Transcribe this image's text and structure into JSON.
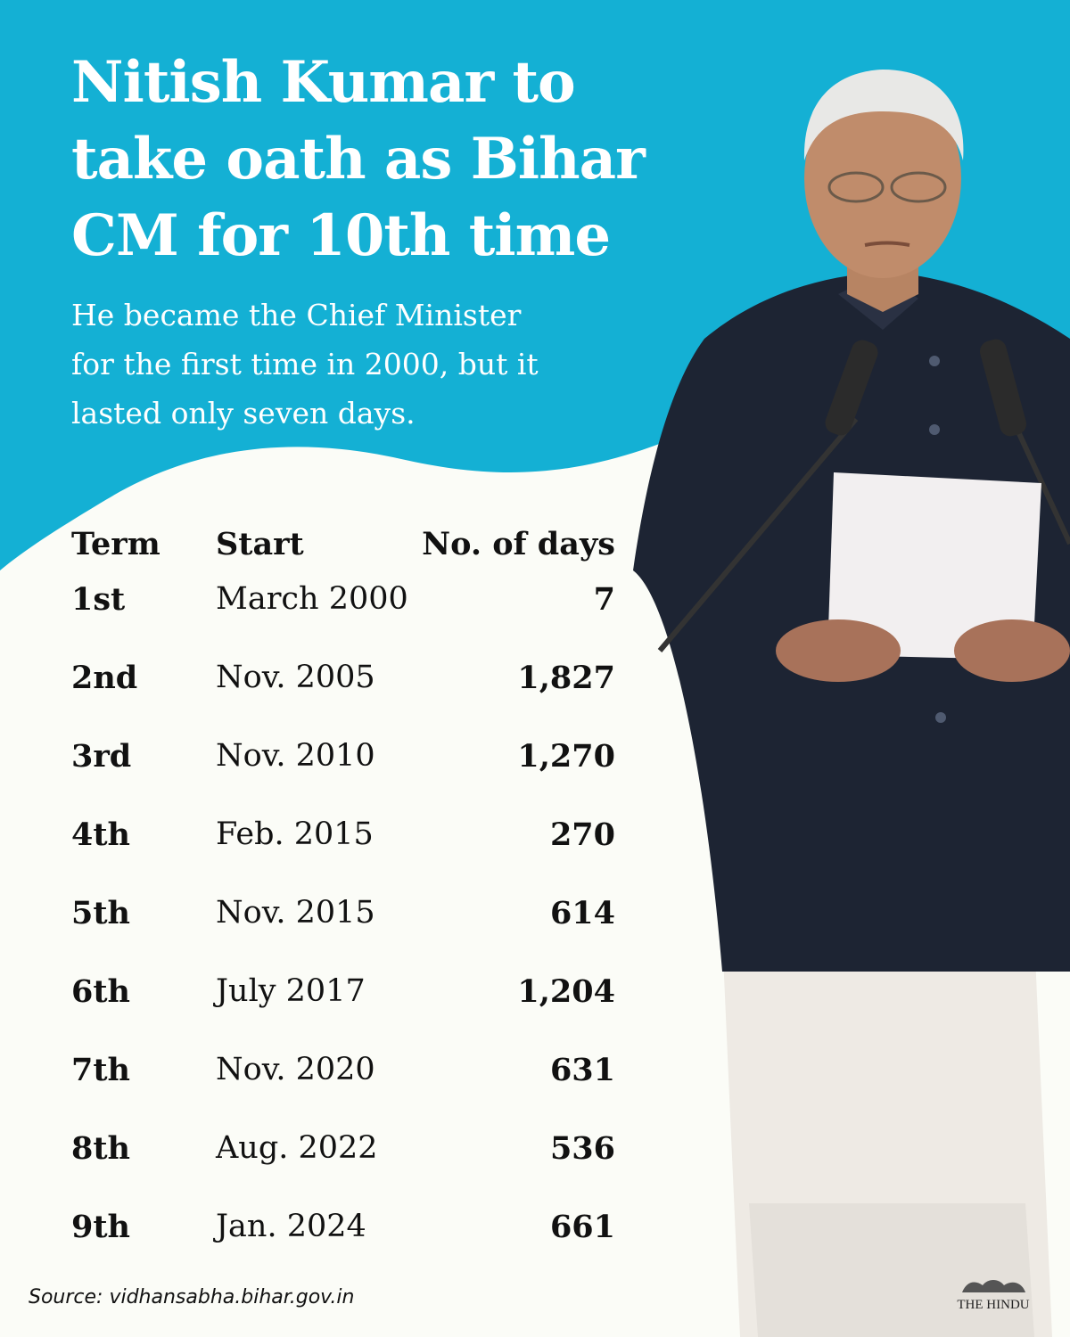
{
  "colors": {
    "accent": "#14b0d4",
    "background": "#fbfcf7",
    "text": "#111111"
  },
  "title_lines": [
    "Nitish Kumar to",
    "take oath as Bihar",
    "CM for 10th time"
  ],
  "subtitle_lines": [
    "He became the Chief Minister",
    "for the first time in 2000, but it",
    "lasted only seven days."
  ],
  "table": {
    "headers": [
      "Term",
      "Start",
      "No. of days"
    ],
    "rows": [
      {
        "term": "1st",
        "start": "March 2000",
        "days": "7"
      },
      {
        "term": "2nd",
        "start": "Nov. 2005",
        "days": "1,827"
      },
      {
        "term": "3rd",
        "start": "Nov. 2010",
        "days": "1,270"
      },
      {
        "term": "4th",
        "start": "Feb. 2015",
        "days": "270"
      },
      {
        "term": "5th",
        "start": "Nov. 2015",
        "days": "614"
      },
      {
        "term": "6th",
        "start": "July 2017",
        "days": "1,204"
      },
      {
        "term": "7th",
        "start": "Nov. 2020",
        "days": "631"
      },
      {
        "term": "8th",
        "start": "Aug. 2022",
        "days": "536"
      },
      {
        "term": "9th",
        "start": "Jan. 2024",
        "days": "661"
      }
    ]
  },
  "source": "Source: vidhansabha.bihar.gov.in",
  "logo": "THE HINDU"
}
